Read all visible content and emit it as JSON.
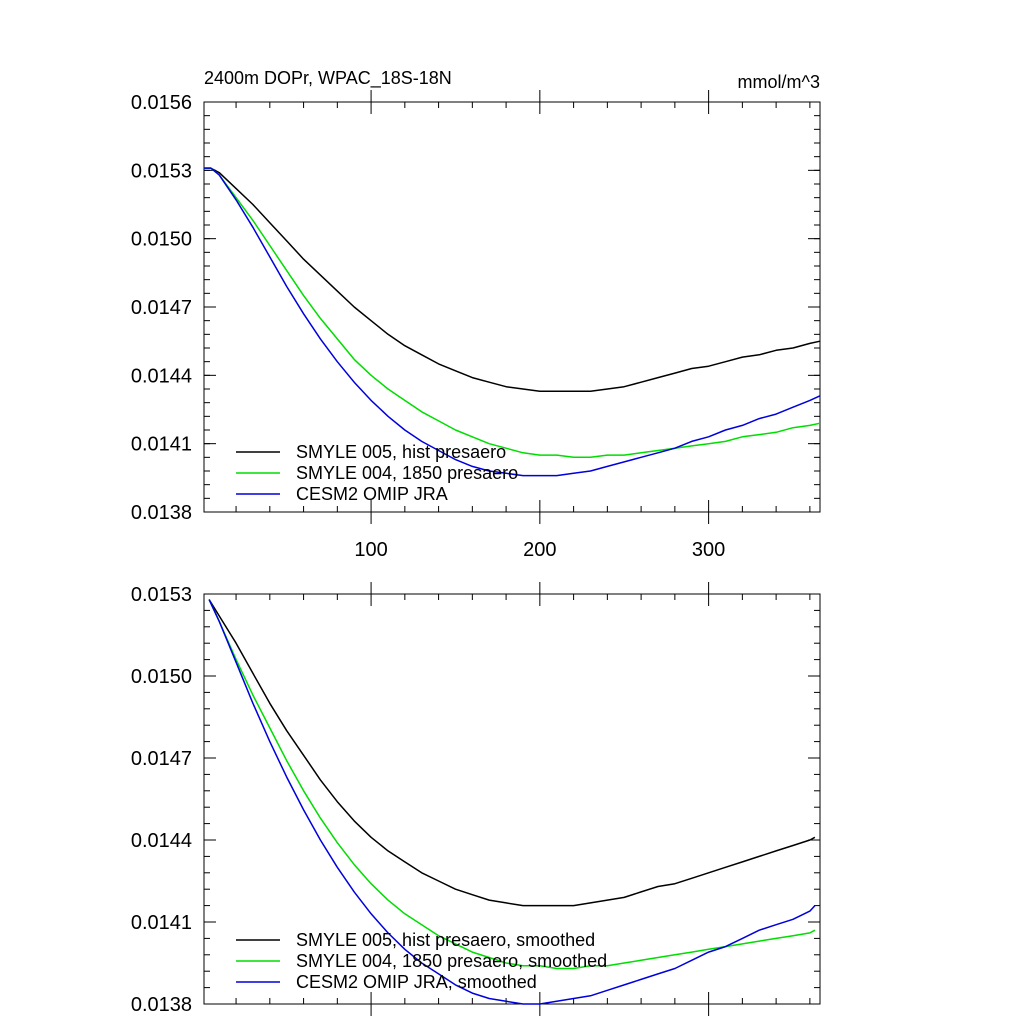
{
  "chart_data": [
    {
      "type": "line",
      "title": "2400m DOPr, WPAC_18S-18N",
      "units": "mmol/m^3",
      "xlim": [
        1,
        366
      ],
      "ylim": [
        0.0138,
        0.0156
      ],
      "x_ticks": [
        100,
        200,
        300
      ],
      "x_tick_labels": [
        "100",
        "200",
        "300"
      ],
      "y_ticks": [
        0.0138,
        0.0141,
        0.0144,
        0.0147,
        0.015,
        0.0153,
        0.0156
      ],
      "y_tick_labels": [
        "0.0138",
        "0.0141",
        "0.0144",
        "0.0147",
        "0.0150",
        "0.0153",
        "0.0156"
      ],
      "legend_position": "bottom-left",
      "series": [
        {
          "name": "SMYLE 005, hist presaero",
          "color": "#000000",
          "x": [
            1,
            5,
            10,
            20,
            30,
            40,
            50,
            60,
            70,
            80,
            90,
            100,
            110,
            120,
            130,
            140,
            150,
            160,
            170,
            180,
            190,
            200,
            210,
            220,
            230,
            240,
            250,
            260,
            270,
            280,
            290,
            300,
            310,
            320,
            330,
            340,
            350,
            360,
            366
          ],
          "y": [
            0.01531,
            0.01531,
            0.01529,
            0.01522,
            0.01515,
            0.01507,
            0.01499,
            0.01491,
            0.01484,
            0.01477,
            0.0147,
            0.01464,
            0.01458,
            0.01453,
            0.01449,
            0.01445,
            0.01442,
            0.01439,
            0.01437,
            0.01435,
            0.01434,
            0.01433,
            0.01433,
            0.01433,
            0.01433,
            0.01434,
            0.01435,
            0.01437,
            0.01439,
            0.01441,
            0.01443,
            0.01444,
            0.01446,
            0.01448,
            0.01449,
            0.01451,
            0.01452,
            0.01454,
            0.01455
          ]
        },
        {
          "name": "SMYLE 004, 1850 presaero",
          "color": "#00dd00",
          "x": [
            1,
            5,
            10,
            20,
            30,
            40,
            50,
            60,
            70,
            80,
            90,
            100,
            110,
            120,
            130,
            140,
            150,
            160,
            170,
            180,
            190,
            200,
            210,
            220,
            230,
            240,
            250,
            260,
            270,
            280,
            290,
            300,
            310,
            320,
            330,
            340,
            350,
            360,
            366
          ],
          "y": [
            0.01531,
            0.01531,
            0.01528,
            0.01518,
            0.01508,
            0.01497,
            0.01486,
            0.01475,
            0.01465,
            0.01456,
            0.01447,
            0.0144,
            0.01434,
            0.01429,
            0.01424,
            0.0142,
            0.01416,
            0.01413,
            0.0141,
            0.01408,
            0.01406,
            0.01405,
            0.01405,
            0.01404,
            0.01404,
            0.01405,
            0.01405,
            0.01406,
            0.01407,
            0.01408,
            0.01409,
            0.0141,
            0.01411,
            0.01413,
            0.01414,
            0.01415,
            0.01417,
            0.01418,
            0.01419
          ]
        },
        {
          "name": "CESM2 OMIP JRA",
          "color": "#0000dd",
          "x": [
            1,
            5,
            10,
            20,
            30,
            40,
            50,
            60,
            70,
            80,
            90,
            100,
            110,
            120,
            130,
            140,
            150,
            160,
            170,
            180,
            190,
            200,
            210,
            220,
            230,
            240,
            250,
            260,
            270,
            280,
            290,
            300,
            310,
            320,
            330,
            340,
            350,
            360,
            366
          ],
          "y": [
            0.01531,
            0.01531,
            0.01528,
            0.01517,
            0.01505,
            0.01492,
            0.01479,
            0.01467,
            0.01456,
            0.01446,
            0.01437,
            0.01429,
            0.01422,
            0.01416,
            0.01411,
            0.01407,
            0.01403,
            0.014,
            0.01398,
            0.01397,
            0.01396,
            0.01396,
            0.01396,
            0.01397,
            0.01398,
            0.014,
            0.01402,
            0.01404,
            0.01406,
            0.01408,
            0.01411,
            0.01413,
            0.01416,
            0.01418,
            0.01421,
            0.01423,
            0.01426,
            0.01429,
            0.01431
          ]
        }
      ]
    },
    {
      "type": "line",
      "xlim": [
        1,
        366
      ],
      "ylim": [
        0.0138,
        0.0153
      ],
      "x_ticks": [
        100,
        200,
        300
      ],
      "x_tick_labels": [],
      "y_ticks": [
        0.0138,
        0.0141,
        0.0144,
        0.0147,
        0.015,
        0.0153
      ],
      "y_tick_labels": [
        "0.0138",
        "0.0141",
        "0.0144",
        "0.0147",
        "0.0150",
        "0.0153"
      ],
      "legend_position": "bottom-left",
      "series": [
        {
          "name": "SMYLE 005, hist presaero, smoothed",
          "color": "#000000",
          "x": [
            4,
            10,
            20,
            30,
            40,
            50,
            60,
            70,
            80,
            90,
            100,
            110,
            120,
            130,
            140,
            150,
            160,
            170,
            180,
            190,
            200,
            210,
            220,
            230,
            240,
            250,
            260,
            270,
            280,
            290,
            300,
            310,
            320,
            330,
            340,
            350,
            360,
            363
          ],
          "y": [
            0.01528,
            0.01522,
            0.01512,
            0.01501,
            0.0149,
            0.0148,
            0.01471,
            0.01462,
            0.01454,
            0.01447,
            0.01441,
            0.01436,
            0.01432,
            0.01428,
            0.01425,
            0.01422,
            0.0142,
            0.01418,
            0.01417,
            0.01416,
            0.01416,
            0.01416,
            0.01416,
            0.01417,
            0.01418,
            0.01419,
            0.01421,
            0.01423,
            0.01424,
            0.01426,
            0.01428,
            0.0143,
            0.01432,
            0.01434,
            0.01436,
            0.01438,
            0.0144,
            0.01441
          ]
        },
        {
          "name": "SMYLE 004, 1850 presaero, smoothed",
          "color": "#00dd00",
          "x": [
            4,
            10,
            20,
            30,
            40,
            50,
            60,
            70,
            80,
            90,
            100,
            110,
            120,
            130,
            140,
            150,
            160,
            170,
            180,
            190,
            200,
            210,
            220,
            230,
            240,
            250,
            260,
            270,
            280,
            290,
            300,
            310,
            320,
            330,
            340,
            350,
            360,
            363
          ],
          "y": [
            0.01528,
            0.0152,
            0.01506,
            0.01493,
            0.01481,
            0.01469,
            0.01458,
            0.01448,
            0.01439,
            0.01431,
            0.01424,
            0.01418,
            0.01413,
            0.01409,
            0.01405,
            0.01402,
            0.01399,
            0.01397,
            0.01395,
            0.01394,
            0.01394,
            0.01393,
            0.01393,
            0.01394,
            0.01394,
            0.01395,
            0.01396,
            0.01397,
            0.01398,
            0.01399,
            0.014,
            0.01401,
            0.01402,
            0.01403,
            0.01404,
            0.01405,
            0.01406,
            0.01407
          ]
        },
        {
          "name": "CESM2 OMIP JRA, smoothed",
          "color": "#0000dd",
          "x": [
            4,
            10,
            20,
            30,
            40,
            50,
            60,
            70,
            80,
            90,
            100,
            110,
            120,
            130,
            140,
            150,
            160,
            170,
            180,
            190,
            200,
            210,
            220,
            230,
            240,
            250,
            260,
            270,
            280,
            290,
            300,
            310,
            320,
            330,
            340,
            350,
            360,
            363
          ],
          "y": [
            0.01528,
            0.0152,
            0.01505,
            0.0149,
            0.01476,
            0.01463,
            0.01451,
            0.0144,
            0.0143,
            0.01421,
            0.01413,
            0.01406,
            0.014,
            0.01395,
            0.01391,
            0.01387,
            0.01384,
            0.01382,
            0.01381,
            0.0138,
            0.0138,
            0.01381,
            0.01382,
            0.01383,
            0.01385,
            0.01387,
            0.01389,
            0.01391,
            0.01393,
            0.01396,
            0.01399,
            0.01401,
            0.01404,
            0.01407,
            0.01409,
            0.01411,
            0.01414,
            0.01416
          ]
        }
      ]
    }
  ]
}
